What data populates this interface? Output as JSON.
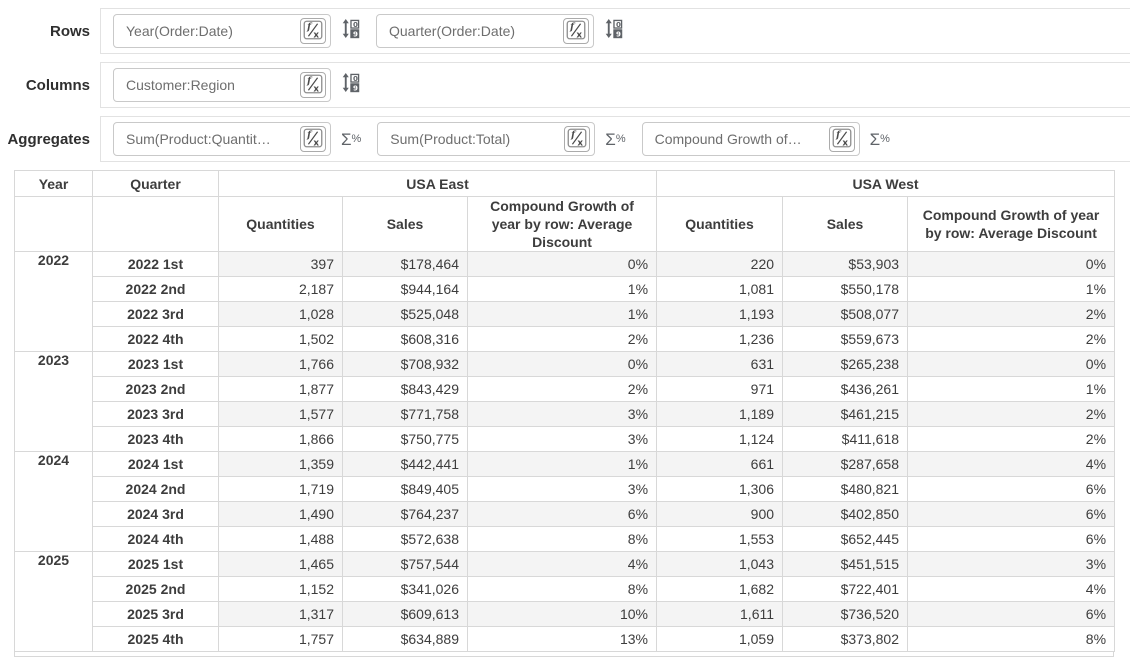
{
  "controls": {
    "rows": {
      "label": "Rows",
      "fields": [
        {
          "value": "Year(Order:Date)"
        },
        {
          "value": "Quarter(Order:Date)"
        }
      ]
    },
    "columns": {
      "label": "Columns",
      "fields": [
        {
          "value": "Customer:Region"
        }
      ]
    },
    "aggregates": {
      "label": "Aggregates",
      "fields": [
        {
          "value": "Sum(Product:Quantit…"
        },
        {
          "value": "Sum(Product:Total)"
        },
        {
          "value": "Compound Growth of…"
        }
      ]
    }
  },
  "icons": {
    "formula_icon": "fx",
    "numeric_sort_icon": "sort-0-9",
    "sigma_percent_icon": "sigma-percent"
  },
  "colors": {
    "border": "#d8d8d8",
    "stripe": "#f4f4f4",
    "text_dark": "#3d3d3d",
    "text_muted": "#6e6e6e",
    "icon_gray": "#5f6368"
  },
  "table": {
    "headers": {
      "year": "Year",
      "quarter": "Quarter",
      "region_east": "USA East",
      "region_west": "USA West",
      "sub": [
        "Quantities",
        "Sales",
        "Compound Growth of year by row: Average Discount"
      ]
    },
    "groups": [
      {
        "year": "2022",
        "quarters": [
          {
            "label": "2022 1st",
            "east": [
              "397",
              "$178,464",
              "0%"
            ],
            "west": [
              "220",
              "$53,903",
              "0%"
            ]
          },
          {
            "label": "2022 2nd",
            "east": [
              "2,187",
              "$944,164",
              "1%"
            ],
            "west": [
              "1,081",
              "$550,178",
              "1%"
            ]
          },
          {
            "label": "2022 3rd",
            "east": [
              "1,028",
              "$525,048",
              "1%"
            ],
            "west": [
              "1,193",
              "$508,077",
              "2%"
            ]
          },
          {
            "label": "2022 4th",
            "east": [
              "1,502",
              "$608,316",
              "2%"
            ],
            "west": [
              "1,236",
              "$559,673",
              "2%"
            ]
          }
        ]
      },
      {
        "year": "2023",
        "quarters": [
          {
            "label": "2023 1st",
            "east": [
              "1,766",
              "$708,932",
              "0%"
            ],
            "west": [
              "631",
              "$265,238",
              "0%"
            ]
          },
          {
            "label": "2023 2nd",
            "east": [
              "1,877",
              "$843,429",
              "2%"
            ],
            "west": [
              "971",
              "$436,261",
              "1%"
            ]
          },
          {
            "label": "2023 3rd",
            "east": [
              "1,577",
              "$771,758",
              "3%"
            ],
            "west": [
              "1,189",
              "$461,215",
              "2%"
            ]
          },
          {
            "label": "2023 4th",
            "east": [
              "1,866",
              "$750,775",
              "3%"
            ],
            "west": [
              "1,124",
              "$411,618",
              "2%"
            ]
          }
        ]
      },
      {
        "year": "2024",
        "quarters": [
          {
            "label": "2024 1st",
            "east": [
              "1,359",
              "$442,441",
              "1%"
            ],
            "west": [
              "661",
              "$287,658",
              "4%"
            ]
          },
          {
            "label": "2024 2nd",
            "east": [
              "1,719",
              "$849,405",
              "3%"
            ],
            "west": [
              "1,306",
              "$480,821",
              "6%"
            ]
          },
          {
            "label": "2024 3rd",
            "east": [
              "1,490",
              "$764,237",
              "6%"
            ],
            "west": [
              "900",
              "$402,850",
              "6%"
            ]
          },
          {
            "label": "2024 4th",
            "east": [
              "1,488",
              "$572,638",
              "8%"
            ],
            "west": [
              "1,553",
              "$652,445",
              "6%"
            ]
          }
        ]
      },
      {
        "year": "2025",
        "quarters": [
          {
            "label": "2025 1st",
            "east": [
              "1,465",
              "$757,544",
              "4%"
            ],
            "west": [
              "1,043",
              "$451,515",
              "3%"
            ]
          },
          {
            "label": "2025 2nd",
            "east": [
              "1,152",
              "$341,026",
              "8%"
            ],
            "west": [
              "1,682",
              "$722,401",
              "4%"
            ]
          },
          {
            "label": "2025 3rd",
            "east": [
              "1,317",
              "$609,613",
              "10%"
            ],
            "west": [
              "1,611",
              "$736,520",
              "6%"
            ]
          },
          {
            "label": "2025 4th",
            "east": [
              "1,757",
              "$634,889",
              "13%"
            ],
            "west": [
              "1,059",
              "$373,802",
              "8%"
            ]
          }
        ]
      }
    ]
  }
}
